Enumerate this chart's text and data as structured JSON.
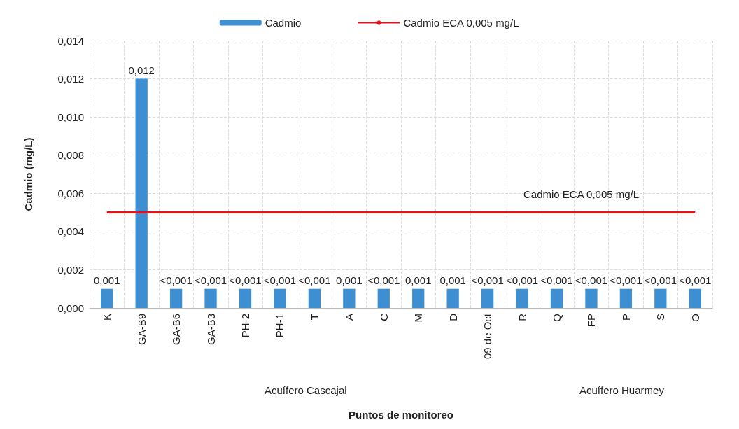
{
  "chart_data": {
    "type": "bar",
    "xlabel": "Puntos de monitoreo",
    "ylabel": "Cadmio (mg/L)",
    "categories": [
      "K",
      "GA-B9",
      "GA-B6",
      "GA-B3",
      "PH-2",
      "PH-1",
      "T",
      "A",
      "C",
      "M",
      "D",
      "09 de Oct",
      "R",
      "Q",
      "FP",
      "P",
      "S",
      "O"
    ],
    "series": [
      {
        "name": "Cadmio",
        "color": "#3d8fd1",
        "values": [
          0.001,
          0.012,
          0.001,
          0.001,
          0.001,
          0.001,
          0.001,
          0.001,
          0.001,
          0.001,
          0.001,
          0.001,
          0.001,
          0.001,
          0.001,
          0.001,
          0.001,
          0.001
        ],
        "value_labels": [
          "0,001",
          "0,012",
          "<0,001",
          "<0,001",
          "<0,001",
          "<0,001",
          "<0,001",
          "0,001",
          "<0,001",
          "0,001",
          "0,001",
          "<0,001",
          "<0,001",
          "<0,001",
          "<0,001",
          "<0,001",
          "<0,001",
          "<0,001"
        ]
      },
      {
        "type": "line",
        "name": "Cadmio ECA 0,005 mg/L",
        "color": "#e0141e",
        "values": [
          0.005,
          0.005,
          0.005,
          0.005,
          0.005,
          0.005,
          0.005,
          0.005,
          0.005,
          0.005,
          0.005,
          0.005,
          0.005,
          0.005,
          0.005,
          0.005,
          0.005,
          0.005
        ]
      }
    ],
    "ylim": [
      0,
      0.014
    ],
    "yticks": [
      {
        "value": 0,
        "label": "0,000"
      },
      {
        "value": 0.002,
        "label": "0,002"
      },
      {
        "value": 0.004,
        "label": "0,004"
      },
      {
        "value": 0.006,
        "label": "0,006"
      },
      {
        "value": 0.008,
        "label": "0,008"
      },
      {
        "value": 0.01,
        "label": "0,010"
      },
      {
        "value": 0.012,
        "label": "0,012"
      },
      {
        "value": 0.014,
        "label": "0,014"
      }
    ],
    "annotations": [
      "Cadmio ECA 0,005 mg/L",
      "Acuífero Cascajal",
      "Acuífero Huarmey"
    ],
    "marker": "none",
    "grid": true,
    "legend": "top"
  }
}
